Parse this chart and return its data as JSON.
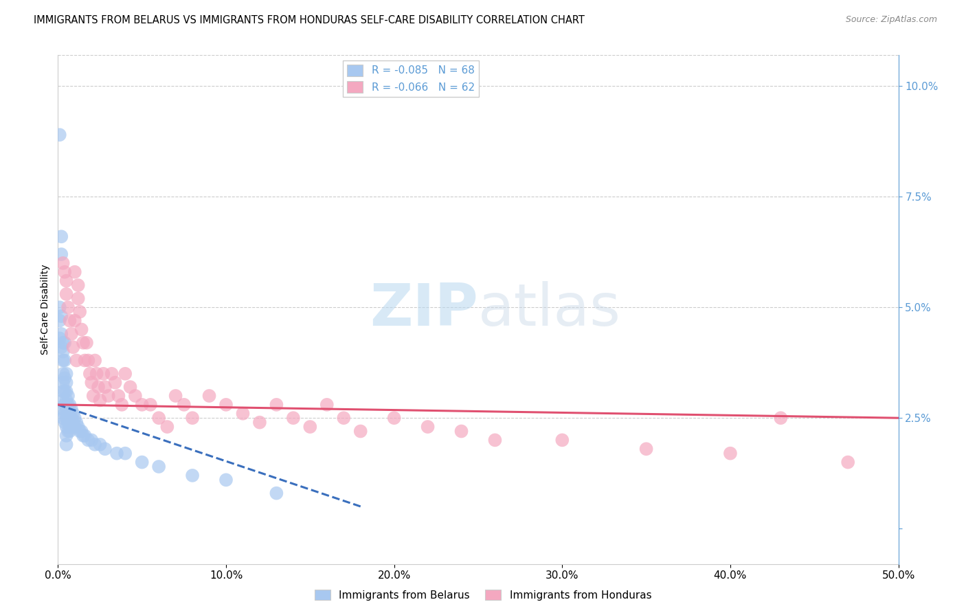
{
  "title": "IMMIGRANTS FROM BELARUS VS IMMIGRANTS FROM HONDURAS SELF-CARE DISABILITY CORRELATION CHART",
  "source": "Source: ZipAtlas.com",
  "ylabel": "Self-Care Disability",
  "xlim": [
    0.0,
    0.5
  ],
  "ylim": [
    -0.008,
    0.107
  ],
  "xticks": [
    0.0,
    0.1,
    0.2,
    0.3,
    0.4,
    0.5
  ],
  "yticks_right": [
    0.0,
    0.025,
    0.05,
    0.075,
    0.1
  ],
  "background_color": "#ffffff",
  "grid_color": "#cccccc",
  "right_axis_color": "#5b9bd5",
  "watermark_color": "#cce4f5",
  "series": [
    {
      "label": "Immigrants from Belarus",
      "R": -0.085,
      "N": 68,
      "color": "#a8c8f0",
      "line_color": "#3a6fbd",
      "line_style": "--",
      "trend_x0": 0.0,
      "trend_x1": 0.18,
      "trend_y0": 0.028,
      "trend_y1": 0.005,
      "x": [
        0.001,
        0.001,
        0.001,
        0.001,
        0.002,
        0.002,
        0.002,
        0.002,
        0.002,
        0.003,
        0.003,
        0.003,
        0.003,
        0.003,
        0.003,
        0.003,
        0.003,
        0.004,
        0.004,
        0.004,
        0.004,
        0.004,
        0.004,
        0.004,
        0.005,
        0.005,
        0.005,
        0.005,
        0.005,
        0.005,
        0.005,
        0.005,
        0.005,
        0.006,
        0.006,
        0.006,
        0.006,
        0.006,
        0.007,
        0.007,
        0.007,
        0.007,
        0.008,
        0.008,
        0.008,
        0.009,
        0.009,
        0.01,
        0.01,
        0.011,
        0.012,
        0.013,
        0.014,
        0.015,
        0.016,
        0.018,
        0.02,
        0.022,
        0.025,
        0.028,
        0.035,
        0.04,
        0.05,
        0.06,
        0.08,
        0.1,
        0.13,
        0.003
      ],
      "y": [
        0.089,
        0.05,
        0.047,
        0.043,
        0.066,
        0.062,
        0.048,
        0.044,
        0.041,
        0.042,
        0.04,
        0.038,
        0.035,
        0.033,
        0.031,
        0.029,
        0.027,
        0.042,
        0.038,
        0.034,
        0.031,
        0.028,
        0.026,
        0.024,
        0.035,
        0.033,
        0.031,
        0.029,
        0.027,
        0.025,
        0.023,
        0.021,
        0.019,
        0.03,
        0.028,
        0.026,
        0.024,
        0.022,
        0.028,
        0.026,
        0.024,
        0.022,
        0.027,
        0.025,
        0.023,
        0.026,
        0.024,
        0.025,
        0.023,
        0.024,
        0.023,
        0.022,
        0.022,
        0.021,
        0.021,
        0.02,
        0.02,
        0.019,
        0.019,
        0.018,
        0.017,
        0.017,
        0.015,
        0.014,
        0.012,
        0.011,
        0.008,
        0.025
      ]
    },
    {
      "label": "Immigrants from Honduras",
      "R": -0.066,
      "N": 62,
      "color": "#f4a8c0",
      "line_color": "#e05070",
      "line_style": "-",
      "trend_x0": 0.0,
      "trend_x1": 0.5,
      "trend_y0": 0.028,
      "trend_y1": 0.025,
      "x": [
        0.003,
        0.004,
        0.005,
        0.005,
        0.006,
        0.007,
        0.008,
        0.009,
        0.01,
        0.011,
        0.012,
        0.012,
        0.013,
        0.014,
        0.015,
        0.016,
        0.017,
        0.018,
        0.019,
        0.02,
        0.021,
        0.022,
        0.023,
        0.024,
        0.025,
        0.027,
        0.028,
        0.03,
        0.032,
        0.034,
        0.036,
        0.038,
        0.04,
        0.043,
        0.046,
        0.05,
        0.055,
        0.06,
        0.065,
        0.07,
        0.075,
        0.08,
        0.09,
        0.1,
        0.11,
        0.12,
        0.13,
        0.14,
        0.15,
        0.16,
        0.17,
        0.18,
        0.2,
        0.22,
        0.24,
        0.26,
        0.3,
        0.35,
        0.4,
        0.43,
        0.47,
        0.01
      ],
      "y": [
        0.06,
        0.058,
        0.056,
        0.053,
        0.05,
        0.047,
        0.044,
        0.041,
        0.058,
        0.038,
        0.055,
        0.052,
        0.049,
        0.045,
        0.042,
        0.038,
        0.042,
        0.038,
        0.035,
        0.033,
        0.03,
        0.038,
        0.035,
        0.032,
        0.029,
        0.035,
        0.032,
        0.03,
        0.035,
        0.033,
        0.03,
        0.028,
        0.035,
        0.032,
        0.03,
        0.028,
        0.028,
        0.025,
        0.023,
        0.03,
        0.028,
        0.025,
        0.03,
        0.028,
        0.026,
        0.024,
        0.028,
        0.025,
        0.023,
        0.028,
        0.025,
        0.022,
        0.025,
        0.023,
        0.022,
        0.02,
        0.02,
        0.018,
        0.017,
        0.025,
        0.015,
        0.047
      ]
    }
  ]
}
